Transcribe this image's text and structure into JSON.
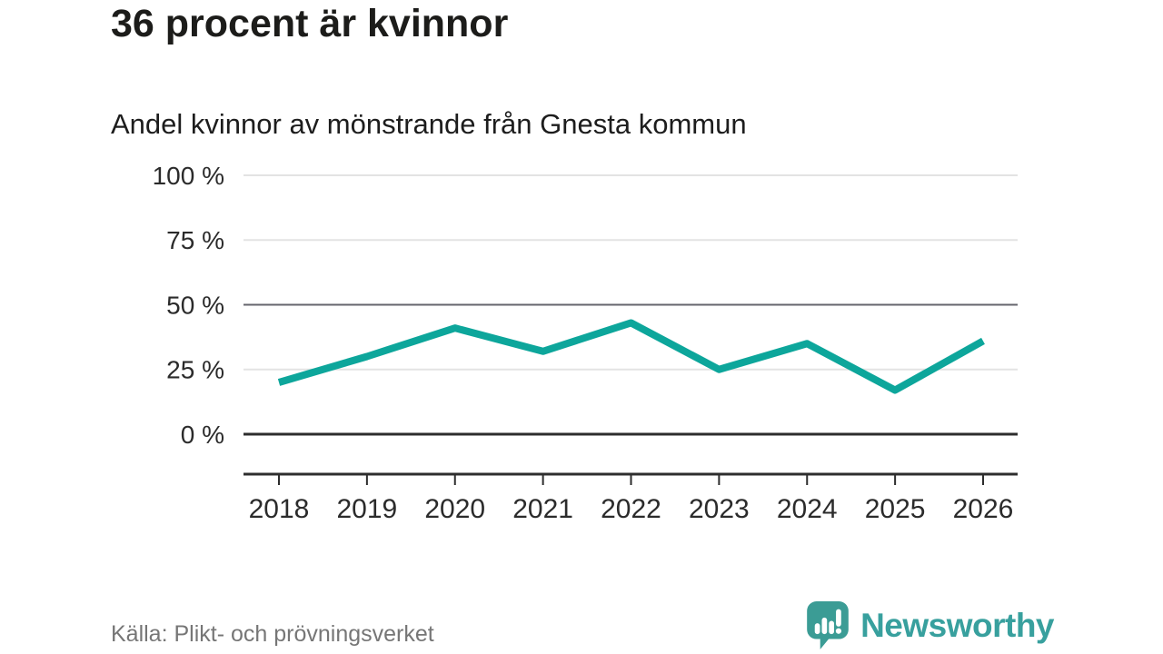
{
  "chart_data": {
    "type": "line",
    "title": "36 procent är kvinnor",
    "subtitle": "Andel kvinnor av mönstrande från Gnesta kommun",
    "x": [
      "2018",
      "2019",
      "2020",
      "2021",
      "2022",
      "2023",
      "2024",
      "2025",
      "2026"
    ],
    "series": [
      {
        "name": "andel-kvinnor",
        "values": [
          20,
          30,
          41,
          32,
          43,
          25,
          35,
          17,
          36
        ]
      }
    ],
    "unit": "%",
    "ylim": [
      0,
      100
    ],
    "yticks": [
      0,
      25,
      50,
      75,
      100
    ],
    "ytick_labels": [
      "0 %",
      "25 %",
      "50 %",
      "75 %",
      "100 %"
    ],
    "grid": "horizontal",
    "emphasized_gridline": 50,
    "zero_line": true,
    "legend": "none",
    "line_color": "#0da69b"
  },
  "footer": {
    "source": "Källa: Plikt- och prövningsverket",
    "logo_text": "Newsworthy",
    "logo_color": "#38a09e",
    "logo_bubble_color": "#3b9c95"
  }
}
